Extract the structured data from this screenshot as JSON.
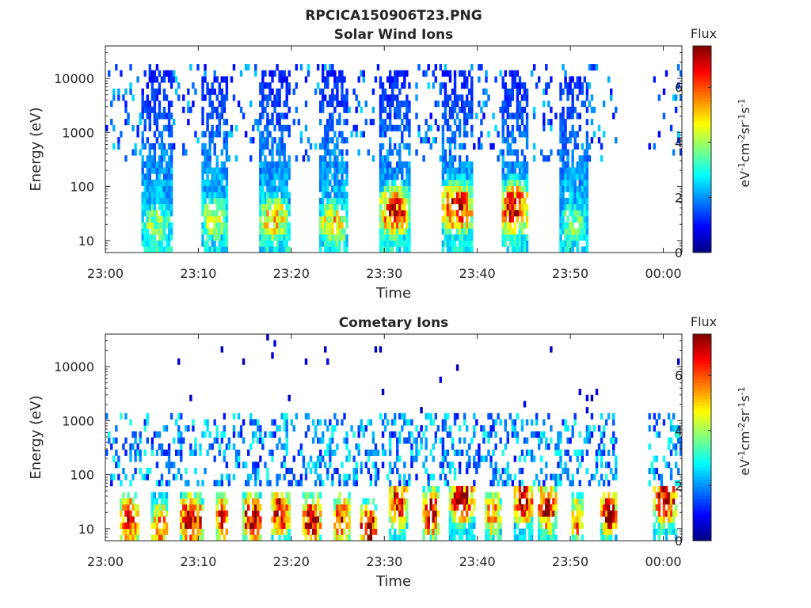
{
  "figure": {
    "title": "RPCICA150906T23.PNG"
  },
  "chart_data": [
    {
      "type": "heatmap",
      "title": "Solar Wind Ions",
      "xlabel": "Time",
      "ylabel": "Energy (eV)",
      "x_ticks": [
        "23:00",
        "23:10",
        "23:20",
        "23:30",
        "23:40",
        "23:50",
        "00:00"
      ],
      "x_range_minutes": [
        0,
        62
      ],
      "y_scale": "log",
      "y_ticks": [
        "10",
        "100",
        "1000",
        "10000"
      ],
      "y_range": [
        6,
        40000
      ],
      "colorbar": {
        "title": "Flux",
        "label": "eV-1cm-2sr-1s-1",
        "ticks": [
          "0",
          "2",
          "4",
          "6"
        ],
        "range": [
          0,
          7.5
        ],
        "colormap": "jet"
      },
      "bursts": [
        {
          "start": 3.8,
          "end": 7.2,
          "emin": 6,
          "emax": 16000,
          "peak_e": 20,
          "peak_v": 4.0
        },
        {
          "start": 10.3,
          "end": 13.2,
          "emin": 6,
          "emax": 12000,
          "peak_e": 25,
          "peak_v": 4.5
        },
        {
          "start": 16.5,
          "end": 19.8,
          "emin": 6,
          "emax": 14000,
          "peak_e": 25,
          "peak_v": 5.2
        },
        {
          "start": 23.0,
          "end": 26.0,
          "emin": 6,
          "emax": 15000,
          "peak_e": 20,
          "peak_v": 5.0
        },
        {
          "start": 29.5,
          "end": 32.8,
          "emin": 6,
          "emax": 14000,
          "peak_e": 35,
          "peak_v": 6.3
        },
        {
          "start": 36.2,
          "end": 39.5,
          "emin": 6,
          "emax": 15000,
          "peak_e": 40,
          "peak_v": 6.8
        },
        {
          "start": 42.5,
          "end": 45.5,
          "emin": 6,
          "emax": 14000,
          "peak_e": 40,
          "peak_v": 6.8
        },
        {
          "start": 48.8,
          "end": 52.0,
          "emin": 6,
          "emax": 12000,
          "peak_e": 20,
          "peak_v": 4.0
        }
      ],
      "background": {
        "emin": 300,
        "emax": 20000,
        "density": 0.14,
        "peak_v": 2.0
      },
      "gaps": [
        [
          55.0,
          58.5
        ]
      ]
    },
    {
      "type": "heatmap",
      "title": "Cometary Ions",
      "xlabel": "Time",
      "ylabel": "Energy (eV)",
      "x_ticks": [
        "23:00",
        "23:10",
        "23:20",
        "23:30",
        "23:40",
        "23:50",
        "00:00"
      ],
      "x_range_minutes": [
        0,
        62
      ],
      "y_scale": "log",
      "y_ticks": [
        "10",
        "100",
        "1000",
        "10000"
      ],
      "y_range": [
        6,
        40000
      ],
      "colorbar": {
        "title": "Flux",
        "label": "eV-1cm-2sr-1s-1",
        "ticks": [
          "0",
          "2",
          "4",
          "6"
        ],
        "range": [
          0,
          7.5
        ],
        "colormap": "jet"
      },
      "bursts": [
        {
          "start": 1.5,
          "end": 3.5,
          "emin": 6,
          "emax": 45,
          "peak_e": 15,
          "peak_v": 6.8
        },
        {
          "start": 5.0,
          "end": 6.8,
          "emin": 6,
          "emax": 45,
          "peak_e": 12,
          "peak_v": 6.0
        },
        {
          "start": 8.0,
          "end": 10.5,
          "emin": 6,
          "emax": 45,
          "peak_e": 15,
          "peak_v": 7.2
        },
        {
          "start": 11.8,
          "end": 13.3,
          "emin": 6,
          "emax": 45,
          "peak_e": 15,
          "peak_v": 6.5
        },
        {
          "start": 14.8,
          "end": 16.8,
          "emin": 6,
          "emax": 45,
          "peak_e": 15,
          "peak_v": 7.3
        },
        {
          "start": 17.8,
          "end": 19.8,
          "emin": 6,
          "emax": 50,
          "peak_e": 20,
          "peak_v": 7.0
        },
        {
          "start": 21.2,
          "end": 23.2,
          "emin": 6,
          "emax": 45,
          "peak_e": 15,
          "peak_v": 7.0
        },
        {
          "start": 24.5,
          "end": 26.3,
          "emin": 6,
          "emax": 45,
          "peak_e": 15,
          "peak_v": 6.5
        },
        {
          "start": 27.3,
          "end": 29.3,
          "emin": 6,
          "emax": 40,
          "peak_e": 10,
          "peak_v": 7.4
        },
        {
          "start": 30.5,
          "end": 32.5,
          "emin": 6,
          "emax": 60,
          "peak_e": 30,
          "peak_v": 7.0
        },
        {
          "start": 34.0,
          "end": 36.0,
          "emin": 6,
          "emax": 60,
          "peak_e": 20,
          "peak_v": 7.2
        },
        {
          "start": 37.0,
          "end": 39.8,
          "emin": 6,
          "emax": 60,
          "peak_e": 35,
          "peak_v": 6.8
        },
        {
          "start": 40.8,
          "end": 42.5,
          "emin": 6,
          "emax": 45,
          "peak_e": 20,
          "peak_v": 6.0
        },
        {
          "start": 44.0,
          "end": 46.0,
          "emin": 6,
          "emax": 60,
          "peak_e": 35,
          "peak_v": 7.0
        },
        {
          "start": 46.5,
          "end": 48.5,
          "emin": 6,
          "emax": 55,
          "peak_e": 25,
          "peak_v": 7.0
        },
        {
          "start": 50.0,
          "end": 51.5,
          "emin": 6,
          "emax": 45,
          "peak_e": 15,
          "peak_v": 6.0
        },
        {
          "start": 53.3,
          "end": 55.0,
          "emin": 6,
          "emax": 50,
          "peak_e": 20,
          "peak_v": 7.0
        },
        {
          "start": 59.0,
          "end": 61.5,
          "emin": 6,
          "emax": 60,
          "peak_e": 35,
          "peak_v": 7.2
        }
      ],
      "background": {
        "emin": 60,
        "emax": 1300,
        "density": 0.3,
        "peak_v": 2.4
      },
      "gaps": [
        [
          55.0,
          58.5
        ]
      ]
    }
  ]
}
